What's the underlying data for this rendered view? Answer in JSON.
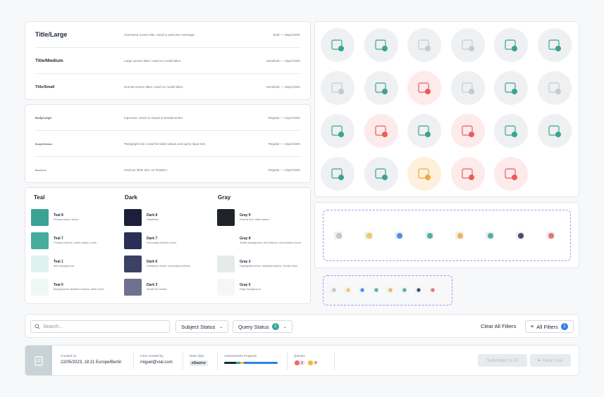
{
  "typography_headings": [
    {
      "name": "Title/Large",
      "desc": "Oversized screen title. Used in welcome message.",
      "spec": "Bold — 20px/130%"
    },
    {
      "name": "Title/Medium",
      "desc": "Large screen titles. Used on model titles.",
      "spec": "Semibold — 16px/135%"
    },
    {
      "name": "Title/Small",
      "desc": "Normal screen titles. Used on model titles.",
      "spec": "Semibold — 15px/135%"
    }
  ],
  "typography_body": [
    {
      "name": "Body/Large",
      "desc": "Input text. Used on inputs & breadcrumbs.",
      "spec": "Regular — 14px/135%"
    },
    {
      "name": "Body/Medium",
      "desc": "Paragraph text. Used for table values and query input text.",
      "spec": "Regular — 12px/135%"
    },
    {
      "name": "Body/Small",
      "desc": "Used as label text. on headers.",
      "spec": "Regular — 10px/135%"
    }
  ],
  "colors": {
    "teal": {
      "title": "Teal",
      "items": [
        {
          "name": "Teal 8",
          "desc": "Primary button hover.",
          "hex": "#3aa394"
        },
        {
          "name": "Teal 7",
          "desc": "Primary buttons, active status, icons.",
          "hex": "#46ad9d"
        },
        {
          "name": "Teal 1",
          "desc": "Alert background.",
          "hex": "#dff3f0"
        },
        {
          "name": "Teal 0",
          "desc": "Backgrounds disabled buttons, table hover.",
          "hex": "#eff8f6"
        }
      ]
    },
    "dark": {
      "title": "Dark",
      "items": [
        {
          "name": "Dark 8",
          "desc": "Headlines.",
          "hex": "#1b1f3b"
        },
        {
          "name": "Dark 7",
          "desc": "Secondary buttons hover.",
          "hex": "#2a2f57"
        },
        {
          "name": "Dark 6",
          "desc": "Headlines muted, secondary buttons.",
          "hex": "#3b4064"
        },
        {
          "name": "Dark 3",
          "desc": "Small text muted.",
          "hex": "#6e7190"
        }
      ]
    },
    "gray": {
      "title": "Gray",
      "items": [
        {
          "name": "Gray 9",
          "desc": "Normal text, table values.",
          "hex": "#202428"
        },
        {
          "name": "Gray 8",
          "desc": "Textfix background, text buttons, menu button icons.",
          "hex": "#ffffff"
        },
        {
          "name": "Gray 2",
          "desc": "Highlighted areas, disabled buttons, Divider lines.",
          "hex": "#e6eaeb"
        },
        {
          "name": "Gray 0",
          "desc": "Page background.",
          "hex": "#f5f7f7"
        }
      ]
    }
  },
  "filters": {
    "search_placeholder": "Search...",
    "subject_status": "Subject Status",
    "query_status": "Query Status",
    "query_status_count": "2",
    "clear_all": "Clear All Filters",
    "all_filters": "All Filters",
    "all_filters_count": "1"
  },
  "info": {
    "created_on_label": "Created on",
    "created_on_value": "22/05/2023, 18:21 Europe/Berlin",
    "form_created_label": "Form created by",
    "form_created_value": "miguel@vial.com",
    "data_type_label": "Data Type",
    "data_type_value": "eSource",
    "progress_label": "Assessments Progress",
    "queries_label": "Queries",
    "queries_red": "2",
    "queries_yellow": "4",
    "submit_button": "Submitted to PI",
    "lock_button": "Data Lock"
  }
}
